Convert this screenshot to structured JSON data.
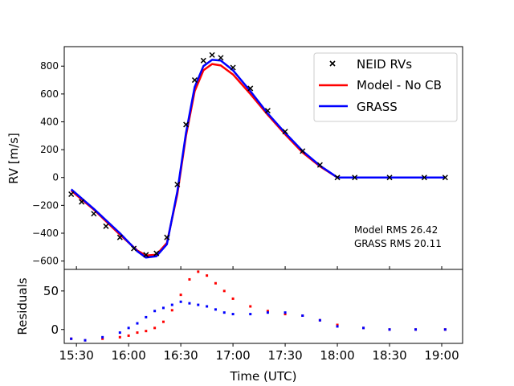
{
  "chart_data": [
    {
      "panel": "main",
      "type": "scatter",
      "ylabel": "RV [m/s]",
      "xlim": [
        "15:23",
        "19:12"
      ],
      "ylim": [
        -660,
        940
      ],
      "yticks": [
        -600,
        -400,
        -200,
        0,
        200,
        400,
        600,
        800
      ],
      "ytick_labels": [
        "−600",
        "−400",
        "−200",
        "0",
        "200",
        "400",
        "600",
        "800"
      ],
      "legend_position": "top-right",
      "series": [
        {
          "name": "NEID RVs",
          "kind": "markers",
          "marker": "x",
          "color": "#000000",
          "x": [
            "15:27",
            "15:33",
            "15:40",
            "15:47",
            "15:55",
            "16:03",
            "16:10",
            "16:16",
            "16:22",
            "16:28",
            "16:33",
            "16:38",
            "16:43",
            "16:48",
            "16:53",
            "17:00",
            "17:10",
            "17:20",
            "17:30",
            "17:40",
            "17:50",
            "18:00",
            "18:10",
            "18:30",
            "18:50",
            "19:02"
          ],
          "y": [
            -120,
            -175,
            -260,
            -350,
            -430,
            -510,
            -555,
            -545,
            -430,
            -50,
            380,
            700,
            840,
            880,
            860,
            790,
            640,
            480,
            330,
            190,
            90,
            0,
            0,
            0,
            0,
            0
          ]
        },
        {
          "name": "Model - No CB",
          "kind": "line",
          "color": "#ff0000",
          "x": [
            "15:27",
            "15:40",
            "15:55",
            "16:05",
            "16:10",
            "16:16",
            "16:22",
            "16:28",
            "16:33",
            "16:38",
            "16:43",
            "16:48",
            "16:53",
            "17:00",
            "17:10",
            "17:20",
            "17:30",
            "17:40",
            "17:50",
            "18:00",
            "18:30",
            "19:02"
          ],
          "y": [
            -95,
            -230,
            -410,
            -525,
            -560,
            -555,
            -470,
            -120,
            300,
            620,
            770,
            815,
            805,
            740,
            600,
            450,
            310,
            180,
            80,
            0,
            0,
            0
          ]
        },
        {
          "name": "GRASS",
          "kind": "line",
          "color": "#0000ff",
          "x": [
            "15:27",
            "15:40",
            "15:55",
            "16:05",
            "16:10",
            "16:16",
            "16:22",
            "16:28",
            "16:33",
            "16:38",
            "16:43",
            "16:48",
            "16:53",
            "17:00",
            "17:10",
            "17:20",
            "17:30",
            "17:40",
            "17:50",
            "18:00",
            "18:30",
            "19:02"
          ],
          "y": [
            -85,
            -225,
            -400,
            -530,
            -575,
            -565,
            -480,
            -100,
            320,
            650,
            800,
            845,
            840,
            770,
            620,
            460,
            320,
            190,
            85,
            0,
            0,
            0
          ]
        }
      ],
      "annotations": [
        "Model RMS 26.42",
        "GRASS RMS 20.11"
      ]
    },
    {
      "panel": "residuals",
      "type": "scatter",
      "xlabel": "Time (UTC)",
      "ylabel": "Residuals",
      "xlim": [
        "15:23",
        "19:12"
      ],
      "ylim": [
        -18,
        78
      ],
      "xticks": [
        "15:30",
        "16:00",
        "16:30",
        "17:00",
        "17:30",
        "18:00",
        "18:30",
        "19:00"
      ],
      "yticks": [
        0,
        50
      ],
      "series": [
        {
          "name": "Model - No CB",
          "kind": "points",
          "color": "#ff0000",
          "x": [
            "15:27",
            "15:35",
            "15:45",
            "15:55",
            "16:00",
            "16:05",
            "16:10",
            "16:15",
            "16:20",
            "16:25",
            "16:30",
            "16:35",
            "16:40",
            "16:45",
            "16:50",
            "16:55",
            "17:00",
            "17:10",
            "17:20",
            "17:30",
            "17:40",
            "17:50",
            "18:00",
            "18:15",
            "18:30",
            "18:45",
            "19:02"
          ],
          "y": [
            -12,
            -14,
            -12,
            -10,
            -8,
            -4,
            -2,
            2,
            10,
            25,
            45,
            65,
            75,
            70,
            60,
            50,
            40,
            30,
            24,
            20,
            18,
            12,
            6,
            2,
            0,
            0,
            0
          ]
        },
        {
          "name": "GRASS",
          "kind": "points",
          "color": "#0000ff",
          "x": [
            "15:27",
            "15:35",
            "15:45",
            "15:55",
            "16:00",
            "16:05",
            "16:10",
            "16:15",
            "16:20",
            "16:25",
            "16:30",
            "16:35",
            "16:40",
            "16:45",
            "16:50",
            "16:55",
            "17:00",
            "17:10",
            "17:20",
            "17:30",
            "17:40",
            "17:50",
            "18:00",
            "18:15",
            "18:30",
            "18:45",
            "19:02"
          ],
          "y": [
            -12,
            -14,
            -10,
            -4,
            2,
            8,
            16,
            24,
            28,
            32,
            36,
            34,
            32,
            30,
            26,
            22,
            20,
            20,
            22,
            22,
            18,
            12,
            4,
            2,
            0,
            0,
            0
          ]
        }
      ]
    }
  ]
}
